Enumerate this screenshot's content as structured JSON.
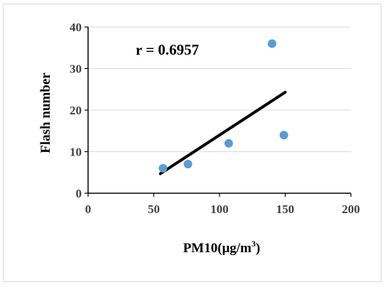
{
  "chart_data": {
    "type": "scatter",
    "title": "",
    "xlabel": "PM10(μg/m",
    "xlabel_sup": "3",
    "xlabel_tail": ")",
    "ylabel": "Flash number",
    "xlim": [
      0,
      200
    ],
    "ylim": [
      0,
      40
    ],
    "xticks": [
      0,
      50,
      100,
      150,
      200
    ],
    "yticks": [
      0,
      10,
      20,
      30,
      40
    ],
    "xtick_labels": [
      "0",
      "50",
      "100",
      "150",
      "200"
    ],
    "ytick_labels": [
      "0",
      "10",
      "20",
      "30",
      "40"
    ],
    "grid": "horizontal",
    "legend": "none",
    "points": [
      {
        "x": 57,
        "y": 6
      },
      {
        "x": 76,
        "y": 7
      },
      {
        "x": 107,
        "y": 12
      },
      {
        "x": 140,
        "y": 36
      },
      {
        "x": 149,
        "y": 14
      }
    ],
    "trendline": {
      "x": [
        55,
        150
      ],
      "y": [
        4.7,
        24.3
      ]
    },
    "annotation": "r = 0.6957",
    "colors": {
      "points": "#5b9bd5",
      "trendline": "#000000",
      "grid": "#d9d9d9",
      "axis": "#000000"
    }
  }
}
